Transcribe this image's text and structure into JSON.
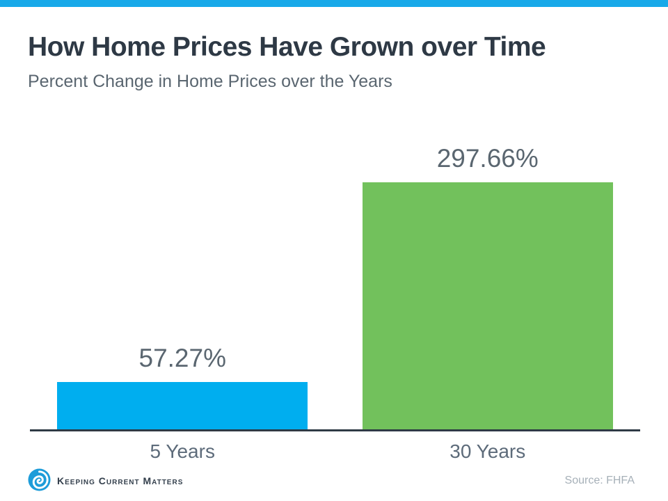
{
  "page": {
    "accent_bar_color": "#18a9e9",
    "background_color": "#ffffff"
  },
  "header": {
    "title": "How Home Prices Have Grown over Time",
    "subtitle": "Percent Change in Home Prices over the Years"
  },
  "chart_data": {
    "type": "bar",
    "title": "How Home Prices Have Grown over Time",
    "subtitle": "Percent Change in Home Prices over the Years",
    "categories": [
      "5 Years",
      "30 Years"
    ],
    "values": [
      57.27,
      297.66
    ],
    "value_labels": [
      "57.27%",
      "297.66%"
    ],
    "bar_colors": [
      "#00aeef",
      "#72c15c"
    ],
    "xlabel": "",
    "ylabel": "",
    "ylim": [
      0,
      297.66
    ],
    "grid": false,
    "legend": false,
    "axis_line_color": "#2e3a45",
    "value_label_color": "#5a6670",
    "category_label_color": "#5d6b7a"
  },
  "footer": {
    "brand_name": "Keeping Current Matters",
    "brand_color": "#333f4c",
    "logo_icon": "swirl-icon",
    "logo_color": "#1d9cd9",
    "source": "Source: FHFA",
    "source_color": "#a6b0b8"
  }
}
